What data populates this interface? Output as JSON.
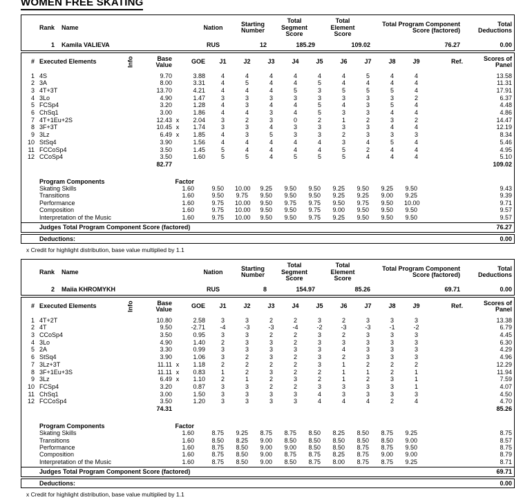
{
  "title": "WOMEN FREE SKATING",
  "labels": {
    "rank": "Rank",
    "name": "Name",
    "nation": "Nation",
    "starting": "Starting\nNumber",
    "segment": "Total\nSegment\nScore",
    "element": "Total\nElement\nScore",
    "tpcs": "Total Program Component\nScore (factored)",
    "deductions": "Total\nDeductions",
    "num": "#",
    "executed": "Executed Elements",
    "info": "Info",
    "base": "Base\nValue",
    "goe": "GOE",
    "judges": [
      "J1",
      "J2",
      "J3",
      "J4",
      "J5",
      "J6",
      "J7",
      "J8",
      "J9"
    ],
    "ref": "Ref.",
    "panel": "Scores of\nPanel",
    "program_components": "Program Components",
    "factor": "Factor",
    "judges_total": "Judges Total Program Component Score (factored)",
    "deductions_label": "Deductions:",
    "footnote": "x Credit for highlight distribution, base value multiplied by 1.1"
  },
  "skaters": [
    {
      "rank": "1",
      "name": "Kamila VALIEVA",
      "nation": "RUS",
      "starting_number": "12",
      "segment_score": "185.29",
      "element_score": "109.02",
      "component_score": "76.27",
      "deductions_total": "0.00",
      "base_total": "82.77",
      "panel_total": "109.02",
      "component_total": "76.27",
      "deductions_value": "0.00",
      "elements": [
        {
          "num": "1",
          "name": "4S",
          "info": "",
          "base": "9.70",
          "credit": "",
          "goe": "3.88",
          "judges": [
            "4",
            "4",
            "4",
            "4",
            "4",
            "4",
            "5",
            "4",
            "4"
          ],
          "panel": "13.58"
        },
        {
          "num": "2",
          "name": "3A",
          "info": "",
          "base": "8.00",
          "credit": "",
          "goe": "3.31",
          "judges": [
            "4",
            "5",
            "4",
            "4",
            "5",
            "4",
            "4",
            "4",
            "4"
          ],
          "panel": "11.31"
        },
        {
          "num": "3",
          "name": "4T+3T",
          "info": "",
          "base": "13.70",
          "credit": "",
          "goe": "4.21",
          "judges": [
            "4",
            "4",
            "4",
            "5",
            "3",
            "5",
            "5",
            "5",
            "4"
          ],
          "panel": "17.91"
        },
        {
          "num": "4",
          "name": "3Lo",
          "info": "",
          "base": "4.90",
          "credit": "",
          "goe": "1.47",
          "judges": [
            "3",
            "3",
            "3",
            "3",
            "3",
            "3",
            "3",
            "3",
            "2"
          ],
          "panel": "6.37"
        },
        {
          "num": "5",
          "name": "FCSp4",
          "info": "",
          "base": "3.20",
          "credit": "",
          "goe": "1.28",
          "judges": [
            "4",
            "3",
            "4",
            "4",
            "5",
            "4",
            "3",
            "5",
            "4"
          ],
          "panel": "4.48"
        },
        {
          "num": "6",
          "name": "ChSq1",
          "info": "",
          "base": "3.00",
          "credit": "",
          "goe": "1.86",
          "judges": [
            "4",
            "4",
            "3",
            "4",
            "5",
            "3",
            "3",
            "4",
            "4"
          ],
          "panel": "4.86"
        },
        {
          "num": "7",
          "name": "4T+1Eu+2S",
          "info": "",
          "base": "12.43",
          "credit": "x",
          "goe": "2.04",
          "judges": [
            "3",
            "2",
            "3",
            "0",
            "2",
            "1",
            "2",
            "3",
            "2"
          ],
          "panel": "14.47"
        },
        {
          "num": "8",
          "name": "3F+3T",
          "info": "",
          "base": "10.45",
          "credit": "x",
          "goe": "1.74",
          "judges": [
            "3",
            "3",
            "4",
            "3",
            "3",
            "3",
            "3",
            "4",
            "4"
          ],
          "panel": "12.19"
        },
        {
          "num": "9",
          "name": "3Lz",
          "info": "",
          "base": "6.49",
          "credit": "x",
          "goe": "1.85",
          "judges": [
            "4",
            "3",
            "5",
            "3",
            "3",
            "2",
            "3",
            "3",
            "3"
          ],
          "panel": "8.34"
        },
        {
          "num": "10",
          "name": "StSq4",
          "info": "",
          "base": "3.90",
          "credit": "",
          "goe": "1.56",
          "judges": [
            "4",
            "4",
            "4",
            "4",
            "4",
            "3",
            "4",
            "5",
            "4"
          ],
          "panel": "5.46"
        },
        {
          "num": "11",
          "name": "FCCoSp4",
          "info": "",
          "base": "3.50",
          "credit": "",
          "goe": "1.45",
          "judges": [
            "5",
            "4",
            "4",
            "4",
            "4",
            "5",
            "2",
            "4",
            "4"
          ],
          "panel": "4.95"
        },
        {
          "num": "12",
          "name": "CCoSp4",
          "info": "",
          "base": "3.50",
          "credit": "",
          "goe": "1.60",
          "judges": [
            "5",
            "5",
            "4",
            "5",
            "5",
            "5",
            "4",
            "4",
            "4"
          ],
          "panel": "5.10"
        }
      ],
      "components": [
        {
          "name": "Skating Skills",
          "factor": "1.60",
          "scores": [
            "9.50",
            "10.00",
            "9.25",
            "9.50",
            "9.50",
            "9.25",
            "9.50",
            "9.25",
            "9.50"
          ],
          "panel": "9.43"
        },
        {
          "name": "Transitions",
          "factor": "1.60",
          "scores": [
            "9.50",
            "9.75",
            "9.50",
            "9.50",
            "9.50",
            "9.25",
            "9.25",
            "9.00",
            "9.25"
          ],
          "panel": "9.39"
        },
        {
          "name": "Performance",
          "factor": "1.60",
          "scores": [
            "9.75",
            "10.00",
            "9.50",
            "9.75",
            "9.75",
            "9.50",
            "9.75",
            "9.50",
            "10.00"
          ],
          "panel": "9.71"
        },
        {
          "name": "Composition",
          "factor": "1.60",
          "scores": [
            "9.75",
            "10.00",
            "9.50",
            "9.50",
            "9.75",
            "9.00",
            "9.50",
            "9.50",
            "9.50"
          ],
          "panel": "9.57"
        },
        {
          "name": "Interpretation of the Music",
          "factor": "1.60",
          "scores": [
            "9.75",
            "10.00",
            "9.50",
            "9.50",
            "9.75",
            "9.25",
            "9.50",
            "9.50",
            "9.50"
          ],
          "panel": "9.57"
        }
      ]
    },
    {
      "rank": "2",
      "name": "Maiia KHROMYKH",
      "nation": "RUS",
      "starting_number": "8",
      "segment_score": "154.97",
      "element_score": "85.26",
      "component_score": "69.71",
      "deductions_total": "0.00",
      "base_total": "74.31",
      "panel_total": "85.26",
      "component_total": "69.71",
      "deductions_value": "0.00",
      "elements": [
        {
          "num": "1",
          "name": "4T+2T",
          "info": "",
          "base": "10.80",
          "credit": "",
          "goe": "2.58",
          "judges": [
            "3",
            "3",
            "2",
            "2",
            "3",
            "2",
            "3",
            "3",
            "3"
          ],
          "panel": "13.38"
        },
        {
          "num": "2",
          "name": "4T",
          "info": "",
          "base": "9.50",
          "credit": "",
          "goe": "-2.71",
          "judges": [
            "-4",
            "-3",
            "-3",
            "-4",
            "-2",
            "-3",
            "-3",
            "-1",
            "-2"
          ],
          "panel": "6.79"
        },
        {
          "num": "3",
          "name": "CCoSp4",
          "info": "",
          "base": "3.50",
          "credit": "",
          "goe": "0.95",
          "judges": [
            "3",
            "3",
            "2",
            "2",
            "3",
            "2",
            "3",
            "3",
            "3"
          ],
          "panel": "4.45"
        },
        {
          "num": "4",
          "name": "3Lo",
          "info": "",
          "base": "4.90",
          "credit": "",
          "goe": "1.40",
          "judges": [
            "2",
            "3",
            "3",
            "2",
            "3",
            "3",
            "3",
            "3",
            "3"
          ],
          "panel": "6.30"
        },
        {
          "num": "5",
          "name": "2A",
          "info": "",
          "base": "3.30",
          "credit": "",
          "goe": "0.99",
          "judges": [
            "3",
            "3",
            "3",
            "3",
            "3",
            "4",
            "3",
            "3",
            "3"
          ],
          "panel": "4.29"
        },
        {
          "num": "6",
          "name": "StSq4",
          "info": "",
          "base": "3.90",
          "credit": "",
          "goe": "1.06",
          "judges": [
            "3",
            "2",
            "3",
            "2",
            "3",
            "2",
            "3",
            "3",
            "3"
          ],
          "panel": "4.96"
        },
        {
          "num": "7",
          "name": "3Lz+3T",
          "info": "",
          "base": "11.11",
          "credit": "x",
          "goe": "1.18",
          "judges": [
            "2",
            "2",
            "2",
            "2",
            "3",
            "1",
            "2",
            "2",
            "2"
          ],
          "panel": "12.29"
        },
        {
          "num": "8",
          "name": "3F+1Eu+3S",
          "info": "",
          "base": "11.11",
          "credit": "x",
          "goe": "0.83",
          "judges": [
            "1",
            "2",
            "3",
            "2",
            "2",
            "1",
            "1",
            "2",
            "1"
          ],
          "panel": "11.94"
        },
        {
          "num": "9",
          "name": "3Lz",
          "info": "",
          "base": "6.49",
          "credit": "x",
          "goe": "1.10",
          "judges": [
            "2",
            "1",
            "2",
            "3",
            "2",
            "1",
            "2",
            "3",
            "1"
          ],
          "panel": "7.59"
        },
        {
          "num": "10",
          "name": "FCSp4",
          "info": "",
          "base": "3.20",
          "credit": "",
          "goe": "0.87",
          "judges": [
            "3",
            "3",
            "2",
            "2",
            "3",
            "3",
            "3",
            "3",
            "1"
          ],
          "panel": "4.07"
        },
        {
          "num": "11",
          "name": "ChSq1",
          "info": "",
          "base": "3.00",
          "credit": "",
          "goe": "1.50",
          "judges": [
            "3",
            "3",
            "3",
            "3",
            "4",
            "3",
            "3",
            "3",
            "3"
          ],
          "panel": "4.50"
        },
        {
          "num": "12",
          "name": "FCCoSp4",
          "info": "",
          "base": "3.50",
          "credit": "",
          "goe": "1.20",
          "judges": [
            "3",
            "3",
            "3",
            "3",
            "4",
            "4",
            "4",
            "2",
            "4"
          ],
          "panel": "4.70"
        }
      ],
      "components": [
        {
          "name": "Skating Skills",
          "factor": "1.60",
          "scores": [
            "8.75",
            "9.25",
            "8.75",
            "8.75",
            "8.50",
            "8.25",
            "8.50",
            "8.75",
            "9.25"
          ],
          "panel": "8.75"
        },
        {
          "name": "Transitions",
          "factor": "1.60",
          "scores": [
            "8.50",
            "8.25",
            "9.00",
            "8.50",
            "8.50",
            "8.50",
            "8.50",
            "8.50",
            "9.00"
          ],
          "panel": "8.57"
        },
        {
          "name": "Performance",
          "factor": "1.60",
          "scores": [
            "8.75",
            "8.50",
            "9.00",
            "9.00",
            "8.50",
            "8.50",
            "8.75",
            "8.75",
            "9.50"
          ],
          "panel": "8.75"
        },
        {
          "name": "Composition",
          "factor": "1.60",
          "scores": [
            "8.75",
            "8.50",
            "9.00",
            "8.75",
            "8.75",
            "8.25",
            "8.75",
            "9.00",
            "9.00"
          ],
          "panel": "8.79"
        },
        {
          "name": "Interpretation of the Music",
          "factor": "1.60",
          "scores": [
            "8.75",
            "8.50",
            "9.00",
            "8.50",
            "8.75",
            "8.00",
            "8.75",
            "8.75",
            "9.25"
          ],
          "panel": "8.71"
        }
      ]
    }
  ]
}
